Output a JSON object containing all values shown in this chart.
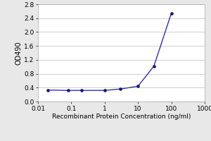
{
  "x": [
    0.02,
    0.08,
    0.2,
    1,
    3,
    10,
    30,
    100
  ],
  "y": [
    0.33,
    0.32,
    0.32,
    0.32,
    0.36,
    0.44,
    1.02,
    2.54
  ],
  "line_color": "#3333aa",
  "marker_color": "#1a1a6e",
  "marker_style": "o",
  "marker_size": 3,
  "line_width": 1.0,
  "ylabel": "OD490",
  "xlabel": "Recombinant Protein Concentration (ng/ml)",
  "xlim": [
    0.01,
    1000
  ],
  "ylim": [
    0.0,
    2.8
  ],
  "yticks": [
    0.0,
    0.4,
    0.8,
    1.2,
    1.6,
    2.0,
    2.4,
    2.8
  ],
  "ytick_labels": [
    "0.0",
    "0.4",
    "0.8",
    "1.2",
    "1.6",
    "2.0",
    "2.4",
    "2.8"
  ],
  "xtick_vals": [
    0.01,
    0.1,
    1,
    10,
    100,
    1000
  ],
  "xtick_labels": [
    "0.01",
    "0.1",
    "1",
    "10",
    "100",
    "1000"
  ],
  "background_color": "#e8e8e8",
  "plot_bg_color": "#ffffff",
  "grid_color": "#c8c8c8",
  "ylabel_fontsize": 7,
  "xlabel_fontsize": 6.5,
  "tick_fontsize": 6.5
}
